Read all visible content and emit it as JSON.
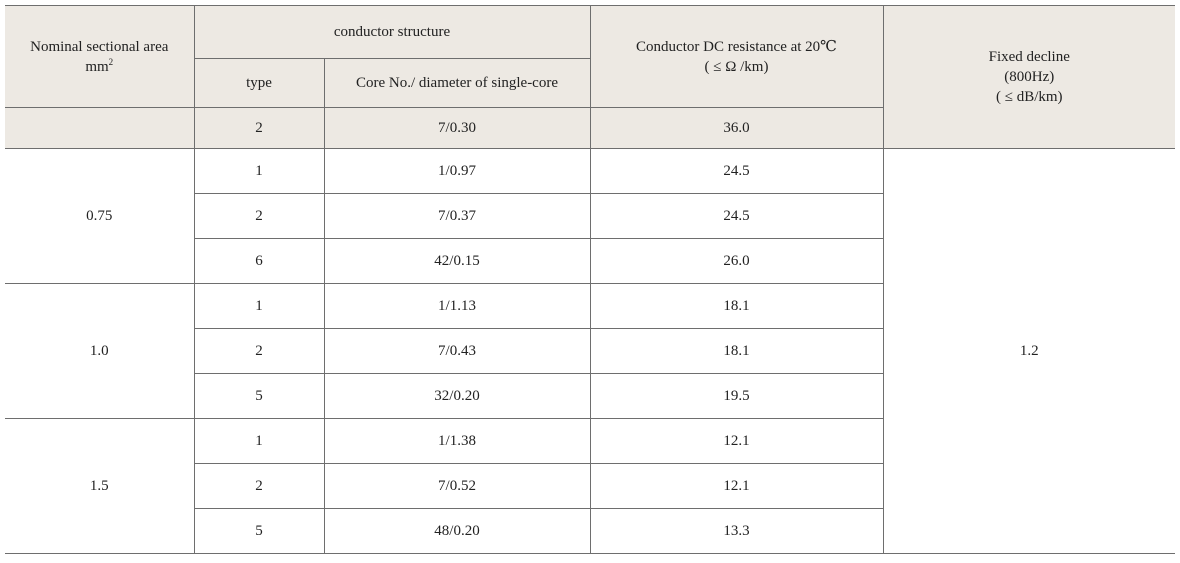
{
  "table": {
    "headers": {
      "nominal_area_line1": "Nominal sectional area",
      "nominal_area_line2": "mm",
      "nominal_area_sup": "2",
      "conductor_structure": "conductor structure",
      "type": "type",
      "core_no": "Core No./ diameter of single-core",
      "resistance_line1": "Conductor DC resistance at 20℃",
      "resistance_line2": "( ≤ Ω /km)",
      "decline_line1": "Fixed decline",
      "decline_line2": "(800Hz)",
      "decline_line3": "( ≤ dB/km)"
    },
    "header_row": {
      "type": "2",
      "core": "7/0.30",
      "resistance": "36.0"
    },
    "groups": [
      {
        "area": "0.75",
        "rows": [
          {
            "type": "1",
            "core": "1/0.97",
            "resistance": "24.5"
          },
          {
            "type": "2",
            "core": "7/0.37",
            "resistance": "24.5"
          },
          {
            "type": "6",
            "core": "42/0.15",
            "resistance": "26.0"
          }
        ]
      },
      {
        "area": "1.0",
        "rows": [
          {
            "type": "1",
            "core": "1/1.13",
            "resistance": "18.1"
          },
          {
            "type": "2",
            "core": "7/0.43",
            "resistance": "18.1"
          },
          {
            "type": "5",
            "core": "32/0.20",
            "resistance": "19.5"
          }
        ]
      },
      {
        "area": "1.5",
        "rows": [
          {
            "type": "1",
            "core": "1/1.38",
            "resistance": "12.1"
          },
          {
            "type": "2",
            "core": "7/0.52",
            "resistance": "12.1"
          },
          {
            "type": "5",
            "core": "48/0.20",
            "resistance": "13.3"
          }
        ]
      }
    ],
    "fixed_decline_value": "1.2"
  }
}
